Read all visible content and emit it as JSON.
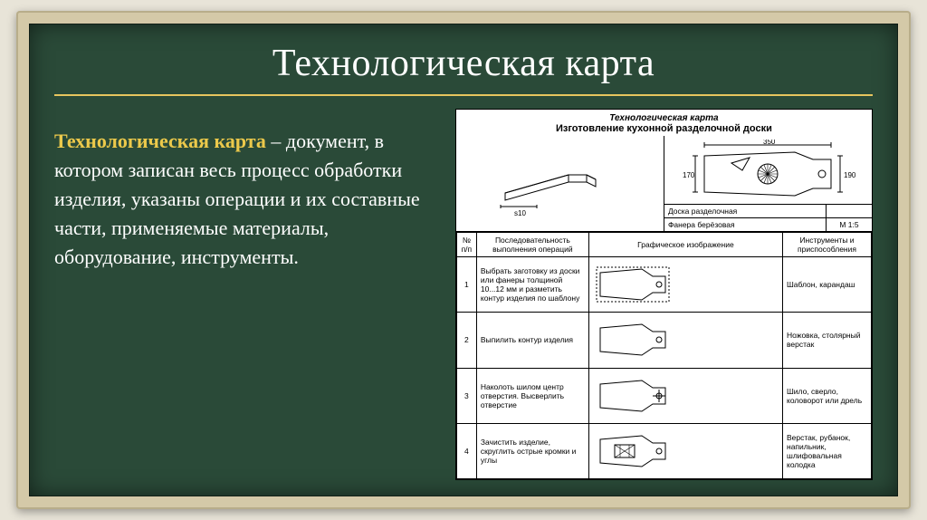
{
  "title": "Технологическая карта",
  "definition": {
    "term": "Технологическая карта",
    "body": " – документ, в котором записан весь процесс обработки изделия, указаны операции и их составные части, применяемые материалы, оборудование, инструменты."
  },
  "doc": {
    "italic_head": "Технологическая карта",
    "sub_head": "Изготовление кухонной разделочной доски",
    "diagram": {
      "dim_top": "350",
      "dim_left": "170",
      "dim_right": "190",
      "thickness": "s10",
      "mat_a": "Доска разделочная",
      "mat_b": "Фанера берёзовая",
      "scale": "М 1:5"
    },
    "columns": {
      "num": "№ п/п",
      "op": "Последовательность выполнения операций",
      "img": "Графическое изображение",
      "tools": "Инструменты и приспособления"
    },
    "rows": [
      {
        "n": "1",
        "op": "Выбрать заготовку из доски или фанеры толщиной 10...12 мм и разметить контур изделия по шаблону",
        "tools": "Шаблон, карандаш",
        "svg": "outline"
      },
      {
        "n": "2",
        "op": "Выпилить контур изделия",
        "tools": "Ножовка, столярный верстак",
        "svg": "cut"
      },
      {
        "n": "3",
        "op": "Наколоть шилом центр отверстия. Высверлить отверстие",
        "tools": "Шило, сверло, коловорот или дрель",
        "svg": "hole"
      },
      {
        "n": "4",
        "op": "Зачистить изделие, скруглить острые кромки и углы",
        "tools": "Верстак, рубанок, напильник, шлифовальная колодка",
        "svg": "finish"
      }
    ]
  },
  "colors": {
    "board": "#2a4a38",
    "frame": "#d4c9a8",
    "accent": "#e6c55e",
    "term": "#ecc94b",
    "white": "#ffffff",
    "table_border": "#000000"
  },
  "typography": {
    "title_fontsize": 42,
    "body_fontsize": 22,
    "table_fontsize": 8.5
  }
}
